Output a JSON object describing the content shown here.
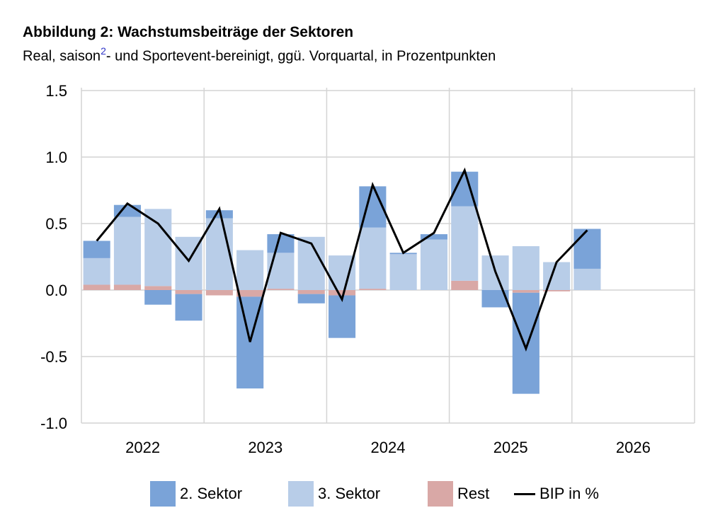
{
  "header": {
    "title": "Abbildung 2: Wachstumsbeiträge der Sektoren",
    "subtitle_pre": "Real, saison",
    "subtitle_sup": "2",
    "subtitle_post": "- und Sportevent-bereinigt, ggü. Vorquartal, in Prozentpunkten"
  },
  "chart_data": {
    "type": "bar",
    "stacked": true,
    "x": [
      "2022 Q1",
      "2022 Q2",
      "2022 Q3",
      "2022 Q4",
      "2023 Q1",
      "2023 Q2",
      "2023 Q3",
      "2023 Q4",
      "2024 Q1",
      "2024 Q2",
      "2024 Q3",
      "2024 Q4",
      "2025 Q1",
      "2025 Q2",
      "2025 Q3",
      "2025 Q4",
      "2026 Q1",
      "2026 Q2",
      "2026 Q3",
      "2026 Q4"
    ],
    "year_labels": [
      "2022",
      "2023",
      "2024",
      "2025",
      "2026"
    ],
    "ylim": [
      -1.0,
      1.5
    ],
    "yticks": [
      "1.5",
      "1.0",
      "0.5",
      "0.0",
      "-0.5",
      "-1.0"
    ],
    "grid": true,
    "legend_position": "bottom",
    "series": [
      {
        "name": "2. Sektor",
        "kind": "bar",
        "color": "#7aa3d8",
        "values": [
          0.13,
          0.09,
          -0.11,
          -0.2,
          0.06,
          -0.69,
          0.14,
          -0.07,
          -0.32,
          0.31,
          0.01,
          0.04,
          0.26,
          -0.13,
          -0.76,
          0.0,
          0.3,
          null,
          null,
          null
        ]
      },
      {
        "name": "3. Sektor",
        "kind": "bar",
        "color": "#b8cde8",
        "values": [
          0.2,
          0.51,
          0.58,
          0.4,
          0.54,
          0.3,
          0.27,
          0.4,
          0.26,
          0.46,
          0.27,
          0.38,
          0.56,
          0.26,
          0.33,
          0.21,
          0.16,
          null,
          null,
          null
        ]
      },
      {
        "name": "Rest",
        "kind": "bar",
        "color": "#d9a8a6",
        "values": [
          0.04,
          0.04,
          0.03,
          -0.03,
          -0.04,
          -0.05,
          0.01,
          -0.03,
          -0.04,
          0.01,
          0.0,
          0.0,
          0.07,
          0.0,
          -0.02,
          -0.01,
          0.0,
          null,
          null,
          null
        ]
      },
      {
        "name": "BIP in %",
        "kind": "line",
        "color": "#000000",
        "values": [
          0.37,
          0.65,
          0.5,
          0.22,
          0.61,
          -0.39,
          0.43,
          0.35,
          -0.07,
          0.79,
          0.28,
          0.43,
          0.9,
          0.14,
          -0.44,
          0.21,
          0.45,
          null,
          null,
          null
        ]
      }
    ]
  }
}
